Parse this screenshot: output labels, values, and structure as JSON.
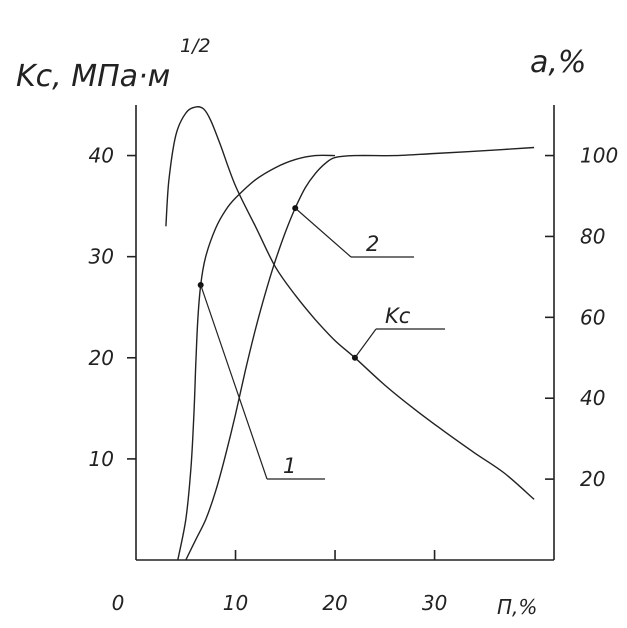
{
  "chart_data": {
    "type": "line",
    "left_axis": {
      "label": "Kc, МПа·м",
      "label_superscript": "1/2",
      "ylim": [
        0,
        45
      ],
      "ticks": [
        "10",
        "20",
        "30",
        "40"
      ]
    },
    "right_axis": {
      "label": "a,%",
      "ylim": [
        0,
        112.5
      ],
      "ticks": [
        "20",
        "40",
        "60",
        "80",
        "100"
      ]
    },
    "x_axis": {
      "label": "П,%",
      "xlim": [
        0,
        42
      ],
      "ticks": [
        "0",
        "10",
        "20",
        "30"
      ]
    },
    "series": [
      {
        "name": "Kc",
        "axis": "left",
        "x": [
          3.0,
          3.3,
          4.0,
          5.0,
          6.0,
          6.8,
          7.5,
          8.5,
          10.0,
          12.0,
          14.0,
          16.0,
          18.0,
          20.0,
          22.0,
          25.0,
          28.0,
          31.0,
          34.0,
          37.0,
          40.0
        ],
        "y": [
          33.0,
          37.5,
          42.0,
          44.2,
          44.8,
          44.6,
          43.5,
          41.0,
          37.0,
          33.0,
          29.0,
          26.2,
          23.8,
          21.7,
          20.0,
          17.3,
          14.9,
          12.7,
          10.6,
          8.6,
          6.0
        ]
      },
      {
        "name": "1",
        "axis": "right",
        "x": [
          4.2,
          5.0,
          5.5,
          5.8,
          6.0,
          6.2,
          6.5,
          7.0,
          8.0,
          9.0,
          10.0,
          12.0,
          14.0,
          16.0,
          18.0,
          20.0
        ],
        "y": [
          0.0,
          10.0,
          22.0,
          35.0,
          48.0,
          59.0,
          68.0,
          75.0,
          82.0,
          86.5,
          89.5,
          94.0,
          97.0,
          99.0,
          100.0,
          100.0
        ]
      },
      {
        "name": "2",
        "axis": "right",
        "x": [
          5.0,
          6.0,
          7.0,
          8.0,
          9.0,
          10.0,
          11.0,
          12.0,
          13.0,
          14.0,
          15.0,
          16.0,
          17.0,
          18.0,
          19.0,
          20.0,
          22.0,
          26.0,
          30.0,
          35.0,
          40.0
        ],
        "y": [
          0.0,
          5.0,
          10.0,
          17.0,
          26.0,
          36.0,
          47.0,
          57.0,
          66.0,
          74.0,
          81.0,
          87.0,
          92.0,
          95.5,
          98.0,
          99.5,
          100.0,
          100.0,
          100.5,
          101.2,
          102.0
        ]
      }
    ],
    "callouts": [
      {
        "text": "Kc",
        "series": "Kc"
      },
      {
        "text": "1",
        "series": "1"
      },
      {
        "text": "2",
        "series": "2"
      }
    ],
    "grid": false,
    "legend": "none"
  }
}
